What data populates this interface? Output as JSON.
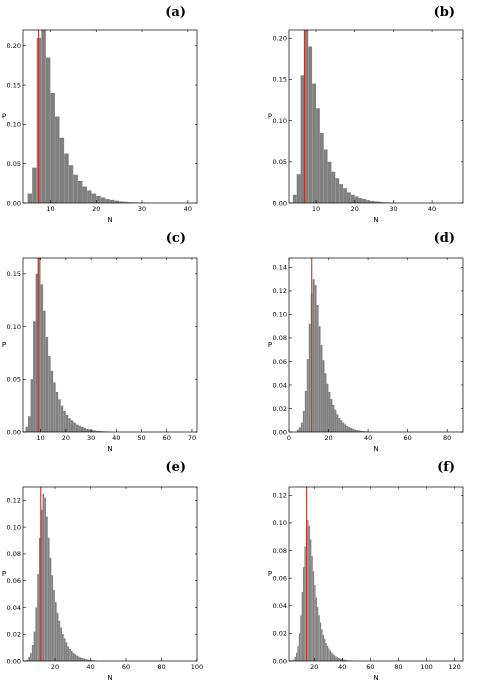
{
  "chart_data": [
    {
      "panel": "(a)",
      "type": "bar",
      "xlabel": "N",
      "ylabel": "P",
      "xlim": [
        4,
        42
      ],
      "ylim": [
        0,
        0.22
      ],
      "xticks": [
        10,
        20,
        30,
        40
      ],
      "yticks": [
        0.0,
        0.05,
        0.1,
        0.15,
        0.2
      ],
      "xtick_labels": [
        "10",
        "20",
        "30",
        "40"
      ],
      "ytick_labels": [
        "0.00",
        "0.05",
        "0.10",
        "0.15",
        "0.20"
      ],
      "x_start": 5,
      "bin_width": 1,
      "values": [
        0.012,
        0.045,
        0.21,
        0.22,
        0.185,
        0.14,
        0.11,
        0.083,
        0.063,
        0.048,
        0.036,
        0.028,
        0.021,
        0.016,
        0.012,
        0.009,
        0.007,
        0.005,
        0.004,
        0.003,
        0.002,
        0.0015,
        0.001,
        0.0008,
        0.0005,
        0.0003
      ],
      "mean_line": 7.4,
      "color": "#808080",
      "line_color": "#c0392b"
    },
    {
      "panel": "(b)",
      "type": "bar",
      "xlabel": "N",
      "ylabel": "P",
      "xlim": [
        3,
        48
      ],
      "ylim": [
        0,
        0.21
      ],
      "xticks": [
        10,
        20,
        30,
        40
      ],
      "yticks": [
        0.0,
        0.05,
        0.1,
        0.15,
        0.2
      ],
      "xtick_labels": [
        "10",
        "20",
        "30",
        "40"
      ],
      "ytick_labels": [
        "0.00",
        "0.05",
        "0.10",
        "0.15",
        "0.20"
      ],
      "x_start": 4,
      "bin_width": 1,
      "values": [
        0.01,
        0.035,
        0.155,
        0.21,
        0.19,
        0.145,
        0.115,
        0.085,
        0.065,
        0.05,
        0.038,
        0.03,
        0.023,
        0.018,
        0.013,
        0.01,
        0.008,
        0.006,
        0.005,
        0.0035,
        0.0025,
        0.002,
        0.0015,
        0.001,
        0.0007,
        0.0005,
        0.0003
      ],
      "mean_line": 7.0,
      "color": "#808080",
      "line_color": "#c0392b"
    },
    {
      "panel": "(c)",
      "type": "bar",
      "xlabel": "N",
      "ylabel": "P",
      "xlim": [
        3,
        72
      ],
      "ylim": [
        0,
        0.165
      ],
      "xticks": [
        10,
        20,
        30,
        40,
        50,
        60,
        70
      ],
      "yticks": [
        0.0,
        0.05,
        0.1,
        0.15
      ],
      "xtick_labels": [
        "10",
        "20",
        "30",
        "40",
        "50",
        "60",
        "70"
      ],
      "ytick_labels": [
        "0.00",
        "0.05",
        "0.10",
        "0.15"
      ],
      "x_start": 4,
      "bin_width": 1,
      "values": [
        0.005,
        0.015,
        0.05,
        0.105,
        0.15,
        0.165,
        0.14,
        0.115,
        0.09,
        0.072,
        0.058,
        0.047,
        0.038,
        0.031,
        0.025,
        0.02,
        0.016,
        0.013,
        0.011,
        0.009,
        0.007,
        0.006,
        0.005,
        0.004,
        0.003,
        0.0025,
        0.002,
        0.0015,
        0.0012,
        0.001,
        0.0008,
        0.0006,
        0.0004,
        0.0003
      ],
      "mean_line": 9.0,
      "color": "#808080",
      "line_color": "#c0392b"
    },
    {
      "panel": "(d)",
      "type": "bar",
      "xlabel": "N",
      "ylabel": "P",
      "xlim": [
        0,
        88
      ],
      "ylim": [
        0,
        0.148
      ],
      "xticks": [
        0,
        20,
        40,
        60,
        80
      ],
      "yticks": [
        0.0,
        0.02,
        0.04,
        0.06,
        0.08,
        0.1,
        0.12,
        0.14
      ],
      "xtick_labels": [
        "0",
        "20",
        "40",
        "60",
        "80"
      ],
      "ytick_labels": [
        "0.00",
        "0.02",
        "0.04",
        "0.06",
        "0.08",
        "0.10",
        "0.12",
        "0.14"
      ],
      "x_start": 4,
      "bin_width": 1,
      "values": [
        0.002,
        0.004,
        0.008,
        0.018,
        0.035,
        0.062,
        0.092,
        0.118,
        0.13,
        0.125,
        0.108,
        0.09,
        0.074,
        0.061,
        0.05,
        0.041,
        0.034,
        0.028,
        0.023,
        0.019,
        0.015,
        0.012,
        0.01,
        0.008,
        0.0065,
        0.0052,
        0.0042,
        0.0034,
        0.0027,
        0.0021,
        0.0017,
        0.0013,
        0.001,
        0.0008,
        0.0006,
        0.0005,
        0.0004,
        0.0003
      ],
      "mean_line": 11.5,
      "color": "#808080",
      "line_color": "#c0392b"
    },
    {
      "panel": "(e)",
      "type": "bar",
      "xlabel": "N",
      "ylabel": "P",
      "xlim": [
        2,
        100
      ],
      "ylim": [
        0,
        0.13
      ],
      "xticks": [
        20,
        40,
        60,
        80,
        100
      ],
      "yticks": [
        0.0,
        0.02,
        0.04,
        0.06,
        0.08,
        0.1,
        0.12
      ],
      "xtick_labels": [
        "20",
        "40",
        "60",
        "80",
        "100"
      ],
      "ytick_labels": [
        "0.00",
        "0.02",
        "0.04",
        "0.06",
        "0.08",
        "0.10",
        "0.12"
      ],
      "x_start": 4,
      "bin_width": 1,
      "values": [
        0.001,
        0.003,
        0.006,
        0.012,
        0.022,
        0.04,
        0.065,
        0.092,
        0.113,
        0.125,
        0.122,
        0.108,
        0.092,
        0.077,
        0.064,
        0.053,
        0.044,
        0.036,
        0.03,
        0.025,
        0.02,
        0.017,
        0.014,
        0.011,
        0.009,
        0.0075,
        0.006,
        0.005,
        0.004,
        0.0033,
        0.0027,
        0.0022,
        0.0018,
        0.0014,
        0.0011,
        0.0009,
        0.0007,
        0.0005,
        0.0004,
        0.0003
      ],
      "mean_line": 12.0,
      "color": "#808080",
      "line_color": "#c0392b"
    },
    {
      "panel": "(f)",
      "type": "bar",
      "xlabel": "N",
      "ylabel": "P",
      "xlim": [
        2,
        126
      ],
      "ylim": [
        0,
        0.126
      ],
      "xticks": [
        20,
        40,
        60,
        80,
        100,
        120
      ],
      "yticks": [
        0.0,
        0.02,
        0.04,
        0.06,
        0.08,
        0.1,
        0.12
      ],
      "xtick_labels": [
        "20",
        "40",
        "60",
        "80",
        "100",
        "120"
      ],
      "ytick_labels": [
        "0.00",
        "0.02",
        "0.04",
        "0.06",
        "0.08",
        "0.10",
        "0.12"
      ],
      "x_start": 4,
      "bin_width": 1,
      "values": [
        0.0005,
        0.001,
        0.003,
        0.006,
        0.011,
        0.02,
        0.033,
        0.05,
        0.068,
        0.083,
        0.095,
        0.102,
        0.098,
        0.088,
        0.076,
        0.065,
        0.055,
        0.046,
        0.039,
        0.033,
        0.028,
        0.023,
        0.019,
        0.016,
        0.013,
        0.011,
        0.009,
        0.0075,
        0.0062,
        0.0051,
        0.0042,
        0.0034,
        0.0028,
        0.0023,
        0.0019,
        0.0015,
        0.0012,
        0.001,
        0.0008,
        0.0006,
        0.0005,
        0.0004,
        0.0003,
        0.0002
      ],
      "mean_line": 14.5,
      "color": "#808080",
      "line_color": "#c0392b"
    }
  ]
}
